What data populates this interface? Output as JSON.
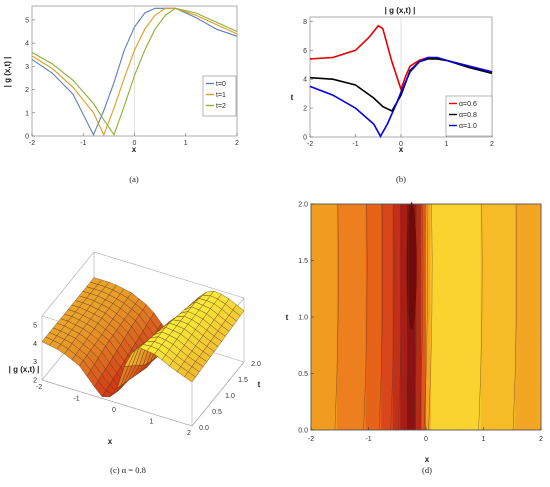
{
  "chart_data": [
    {
      "panel": "a",
      "type": "line",
      "caption": "(a)",
      "title": "",
      "xlabel": "x",
      "ylabel": "| g (x,t) |",
      "xlim": [
        -2,
        2
      ],
      "ylim": [
        0,
        5.6
      ],
      "xticks": [
        "-2",
        "-1",
        "0",
        "1",
        "2"
      ],
      "yticks": [
        "0",
        "1",
        "2",
        "3",
        "4",
        "5"
      ],
      "legend_position": "bottom-right",
      "series": [
        {
          "name": "t=0",
          "color": "#5E81B5",
          "x": [
            -2,
            -1.6,
            -1.2,
            -0.8,
            -0.6,
            -0.4,
            -0.2,
            0,
            0.2,
            0.4,
            0.8,
            1.2,
            1.6,
            2
          ],
          "y": [
            3.3,
            2.7,
            1.8,
            0.05,
            1.1,
            2.3,
            3.7,
            4.7,
            5.3,
            5.5,
            5.5,
            5.1,
            4.6,
            4.3
          ]
        },
        {
          "name": "t=1",
          "color": "#E19C24",
          "x": [
            -2,
            -1.6,
            -1.2,
            -0.8,
            -0.6,
            -0.4,
            -0.2,
            0,
            0.2,
            0.4,
            0.6,
            0.8,
            1.2,
            1.6,
            2
          ],
          "y": [
            3.45,
            2.9,
            2.1,
            1.0,
            0.05,
            1.2,
            2.5,
            3.7,
            4.6,
            5.2,
            5.5,
            5.5,
            5.2,
            4.8,
            4.4
          ]
        },
        {
          "name": "t=2",
          "color": "#8FB032",
          "x": [
            -2,
            -1.6,
            -1.2,
            -0.8,
            -0.6,
            -0.4,
            -0.2,
            0,
            0.2,
            0.4,
            0.6,
            0.8,
            1.2,
            1.6,
            2
          ],
          "y": [
            3.6,
            3.1,
            2.4,
            1.4,
            0.7,
            0.05,
            1.3,
            2.6,
            3.7,
            4.6,
            5.2,
            5.5,
            5.3,
            4.9,
            4.5
          ]
        }
      ]
    },
    {
      "panel": "b",
      "type": "line",
      "caption": "(b)",
      "title": "| g (x,t) |",
      "xlabel": "x",
      "ylabel": "t",
      "xlim": [
        -2,
        2
      ],
      "ylim": [
        0,
        8.3
      ],
      "xticks": [
        "-2",
        "-1",
        "0",
        "1",
        "2"
      ],
      "yticks": [
        "0",
        "2",
        "4",
        "6",
        "8"
      ],
      "legend_position": "bottom-right",
      "series": [
        {
          "name": "α=0.6",
          "color": "#e60000",
          "x": [
            -2,
            -1.5,
            -1,
            -0.7,
            -0.5,
            -0.4,
            -0.2,
            0,
            0.1,
            0.2,
            0.4,
            0.6,
            1,
            1.5,
            2
          ],
          "y": [
            5.4,
            5.5,
            6.0,
            6.9,
            7.7,
            7.5,
            5.2,
            3.3,
            4.2,
            4.9,
            5.3,
            5.5,
            5.3,
            4.9,
            4.5
          ]
        },
        {
          "name": "α=0.8",
          "color": "#000000",
          "x": [
            -2,
            -1.5,
            -1,
            -0.6,
            -0.4,
            -0.2,
            0,
            0.2,
            0.4,
            0.6,
            0.8,
            1,
            1.5,
            2
          ],
          "y": [
            4.1,
            4.0,
            3.6,
            2.7,
            2.1,
            1.8,
            2.9,
            4.6,
            5.2,
            5.4,
            5.4,
            5.3,
            4.8,
            4.4
          ]
        },
        {
          "name": "α=1.0",
          "color": "#0000e6",
          "x": [
            -2,
            -1.5,
            -1,
            -0.6,
            -0.45,
            -0.3,
            -0.1,
            0,
            0.2,
            0.4,
            0.6,
            0.8,
            1,
            1.5,
            2
          ],
          "y": [
            3.5,
            2.9,
            2.0,
            0.9,
            0.05,
            0.9,
            2.3,
            3.1,
            4.5,
            5.2,
            5.5,
            5.5,
            5.3,
            4.9,
            4.5
          ]
        }
      ]
    },
    {
      "panel": "c",
      "type": "surface",
      "caption": "(c) α = 0.8",
      "xlabel": "x",
      "ylabel": "t",
      "zlabel": "| g (x,t) |",
      "xticks": [
        "-2",
        "-1",
        "0",
        "1",
        "2"
      ],
      "yticks": [
        "0.0",
        "0.5",
        "1.0",
        "1.5",
        "2.0"
      ],
      "zticks": [
        "2",
        "3",
        "4",
        "5"
      ],
      "zlim": [
        2,
        5.5
      ],
      "profile_x": [
        -2,
        -1.5,
        -1,
        -0.6,
        -0.3,
        0,
        0.3,
        0.6,
        1,
        1.5,
        2
      ],
      "profile_z": [
        4.1,
        3.9,
        3.4,
        2.5,
        1.9,
        2.8,
        4.8,
        5.4,
        5.3,
        4.8,
        4.4
      ]
    },
    {
      "panel": "d",
      "type": "contour",
      "caption": "(d)",
      "xlabel": "x",
      "ylabel": "t",
      "xlim": [
        -2,
        2
      ],
      "ylim": [
        0,
        2
      ],
      "xticks": [
        "-2",
        "-1",
        "0",
        "1",
        "2"
      ],
      "yticks": [
        "0.0",
        "0.5",
        "1.0",
        "1.5",
        "2.0"
      ],
      "bands": [
        {
          "x0": -2.0,
          "x1": -1.55,
          "color": "#F09C1E"
        },
        {
          "x0": -1.55,
          "x1": -1.05,
          "color": "#EE7F1E"
        },
        {
          "x0": -1.05,
          "x1": -0.78,
          "color": "#E76318"
        },
        {
          "x0": -0.78,
          "x1": -0.58,
          "color": "#D9461B"
        },
        {
          "x0": -0.58,
          "x1": -0.45,
          "color": "#C3301A"
        },
        {
          "x0": -0.45,
          "x1": -0.33,
          "color": "#A81E17"
        },
        {
          "x0": -0.33,
          "x1": -0.18,
          "color": "#8A1212"
        },
        {
          "x0": -0.18,
          "x1": -0.08,
          "color": "#B62A17"
        },
        {
          "x0": -0.08,
          "x1": 0.0,
          "color": "#E1561B"
        },
        {
          "x0": 0.0,
          "x1": 0.08,
          "color": "#F5A623"
        },
        {
          "x0": 0.08,
          "x1": 0.95,
          "color": "#FBD32E"
        },
        {
          "x0": 0.95,
          "x1": 1.55,
          "color": "#F6BC27"
        },
        {
          "x0": 1.55,
          "x1": 2.0,
          "color": "#F3A624"
        }
      ]
    }
  ]
}
